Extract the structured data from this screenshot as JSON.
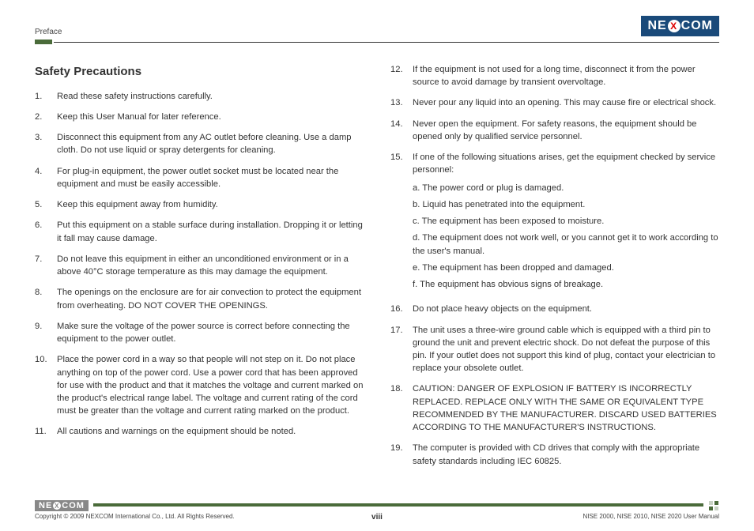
{
  "header": {
    "section_label": "Preface",
    "logo_left": "NE",
    "logo_x": "X",
    "logo_right": "COM"
  },
  "title": "Safety Precautions",
  "col1_start": 0,
  "col2_start": 11,
  "col1": [
    "Read these safety instructions carefully.",
    "Keep this User Manual for later reference.",
    "Disconnect this equipment from any AC outlet before cleaning. Use a damp cloth. Do not use liquid or spray detergents for cleaning.",
    "For plug-in equipment, the power outlet socket must be located near the equipment and must be easily accessible.",
    "Keep this equipment away from humidity.",
    "Put this equipment on a stable surface during installation. Dropping it or letting it fall may cause damage.",
    "Do not leave this equipment in either an unconditioned environment or in a above 40°C storage temperature as this may damage the equipment.",
    "The openings on the enclosure are for air convection to protect the equipment from overheating. DO NOT COVER THE OPENINGS.",
    "Make sure the voltage of the power source is correct before connecting the equipment to the power outlet.",
    "Place the power cord in a way so that people will not step on it. Do not place anything on top of the power cord. Use a power cord that has been approved for use with the product and that it matches the voltage and current marked on the product's electrical range label. The voltage and current rating of the cord must be greater than the voltage and current rating marked on the product.",
    "All cautions and warnings on the equipment should be noted."
  ],
  "col2": [
    {
      "text": "If the equipment is not used for a long time, disconnect it from the power source to avoid damage by transient overvoltage."
    },
    {
      "text": "Never pour any liquid into an opening. This may cause fire or electrical shock."
    },
    {
      "text": "Never open the equipment. For safety reasons, the equipment should be opened only by qualified service personnel."
    },
    {
      "text": "If one of the following situations arises, get the equipment checked by service personnel:",
      "sub": [
        "a. The power cord or plug is damaged.",
        "b. Liquid has penetrated into the equipment.",
        "c. The equipment has been exposed to moisture.",
        "d. The equipment does not work well, or you cannot get it to work according to the user's manual.",
        "e. The equipment has been dropped and damaged.",
        "f. The equipment has obvious signs of breakage."
      ]
    },
    {
      "text": "Do not place heavy objects on the equipment."
    },
    {
      "text": "The unit uses a three-wire ground cable which is equipped with a third pin to ground the unit and prevent electric shock. Do not defeat the purpose of this pin. If your outlet does not support this kind of plug, contact your electrician to replace your obsolete outlet."
    },
    {
      "text": "CAUTION: DANGER OF EXPLOSION IF BATTERY IS INCORRECTLY REPLACED. REPLACE ONLY WITH THE SAME OR EQUIVALENT TYPE RECOMMENDED BY THE MANUFACTURER. DISCARD USED BATTERIES ACCORDING TO THE MANUFACTURER'S INSTRUCTIONS."
    },
    {
      "text": "The computer is provided with CD drives that comply with the appropriate safety standards including IEC 60825."
    }
  ],
  "footer": {
    "copyright": "Copyright © 2009 NEXCOM International Co., Ltd. All Rights Reserved.",
    "page": "viii",
    "manual": "NISE 2000, NISE 2010, NISE 2020 User Manual"
  },
  "colors": {
    "accent": "#4a6b3a",
    "logo_bg": "#1a4a7a",
    "logo_x": "#d00000"
  }
}
